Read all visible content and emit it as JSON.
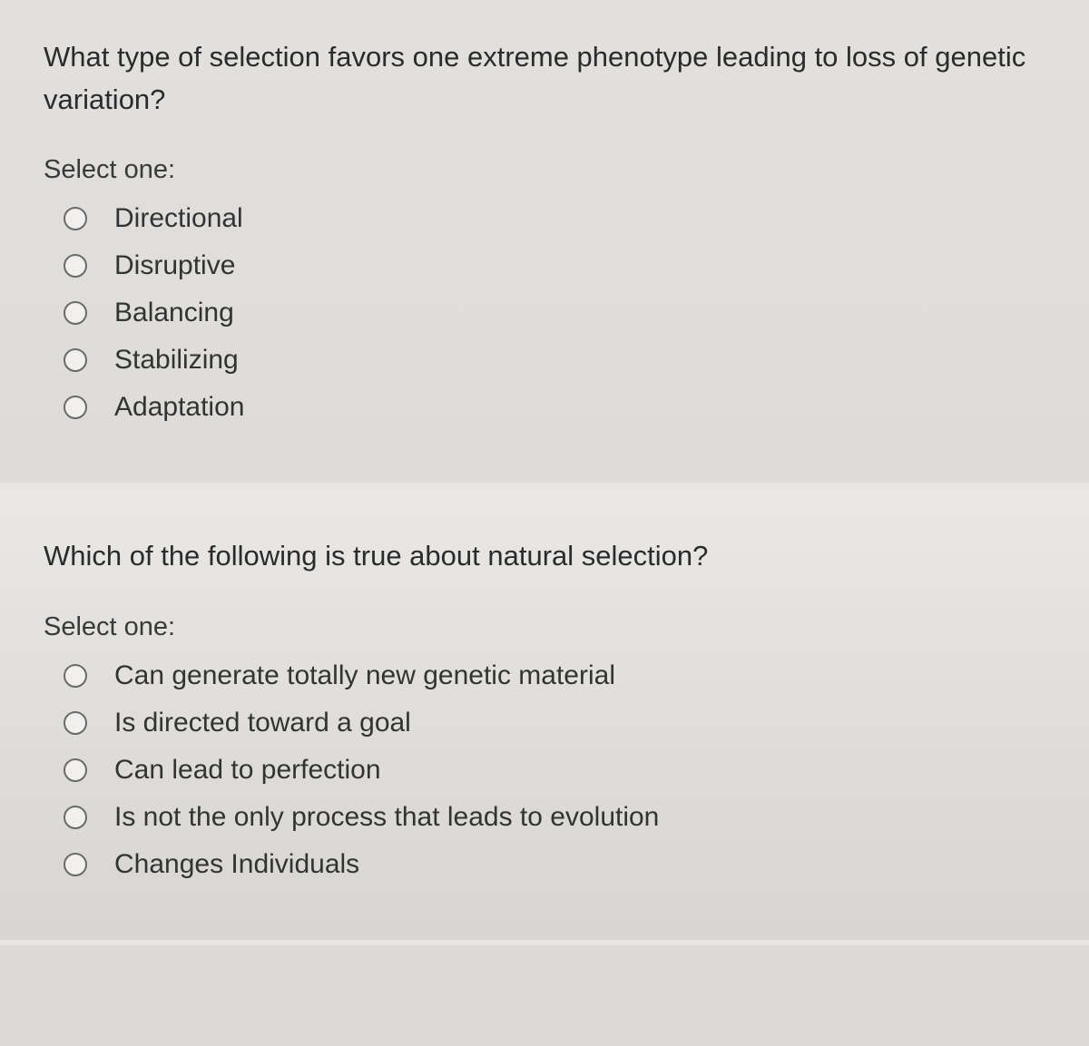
{
  "questions": [
    {
      "prompt": "What type of selection favors one extreme phenotype leading to loss of genetic variation?",
      "select_label": "Select one:",
      "options": [
        {
          "label": "Directional"
        },
        {
          "label": "Disruptive"
        },
        {
          "label": "Balancing"
        },
        {
          "label": "Stabilizing"
        },
        {
          "label": "Adaptation"
        }
      ]
    },
    {
      "prompt": "Which of the following is true about natural selection?",
      "select_label": "Select one:",
      "options": [
        {
          "label": "Can generate totally new genetic material"
        },
        {
          "label": "Is directed toward a goal"
        },
        {
          "label": "Can lead to perfection"
        },
        {
          "label": "Is not the only process that leads to evolution"
        },
        {
          "label": "Changes Individuals"
        }
      ]
    }
  ],
  "colors": {
    "text": "#2b2b2b",
    "radio_border": "#6a6a6a",
    "bg_top": "#e2e0de",
    "bg_bottom": "#d8d6d3"
  }
}
